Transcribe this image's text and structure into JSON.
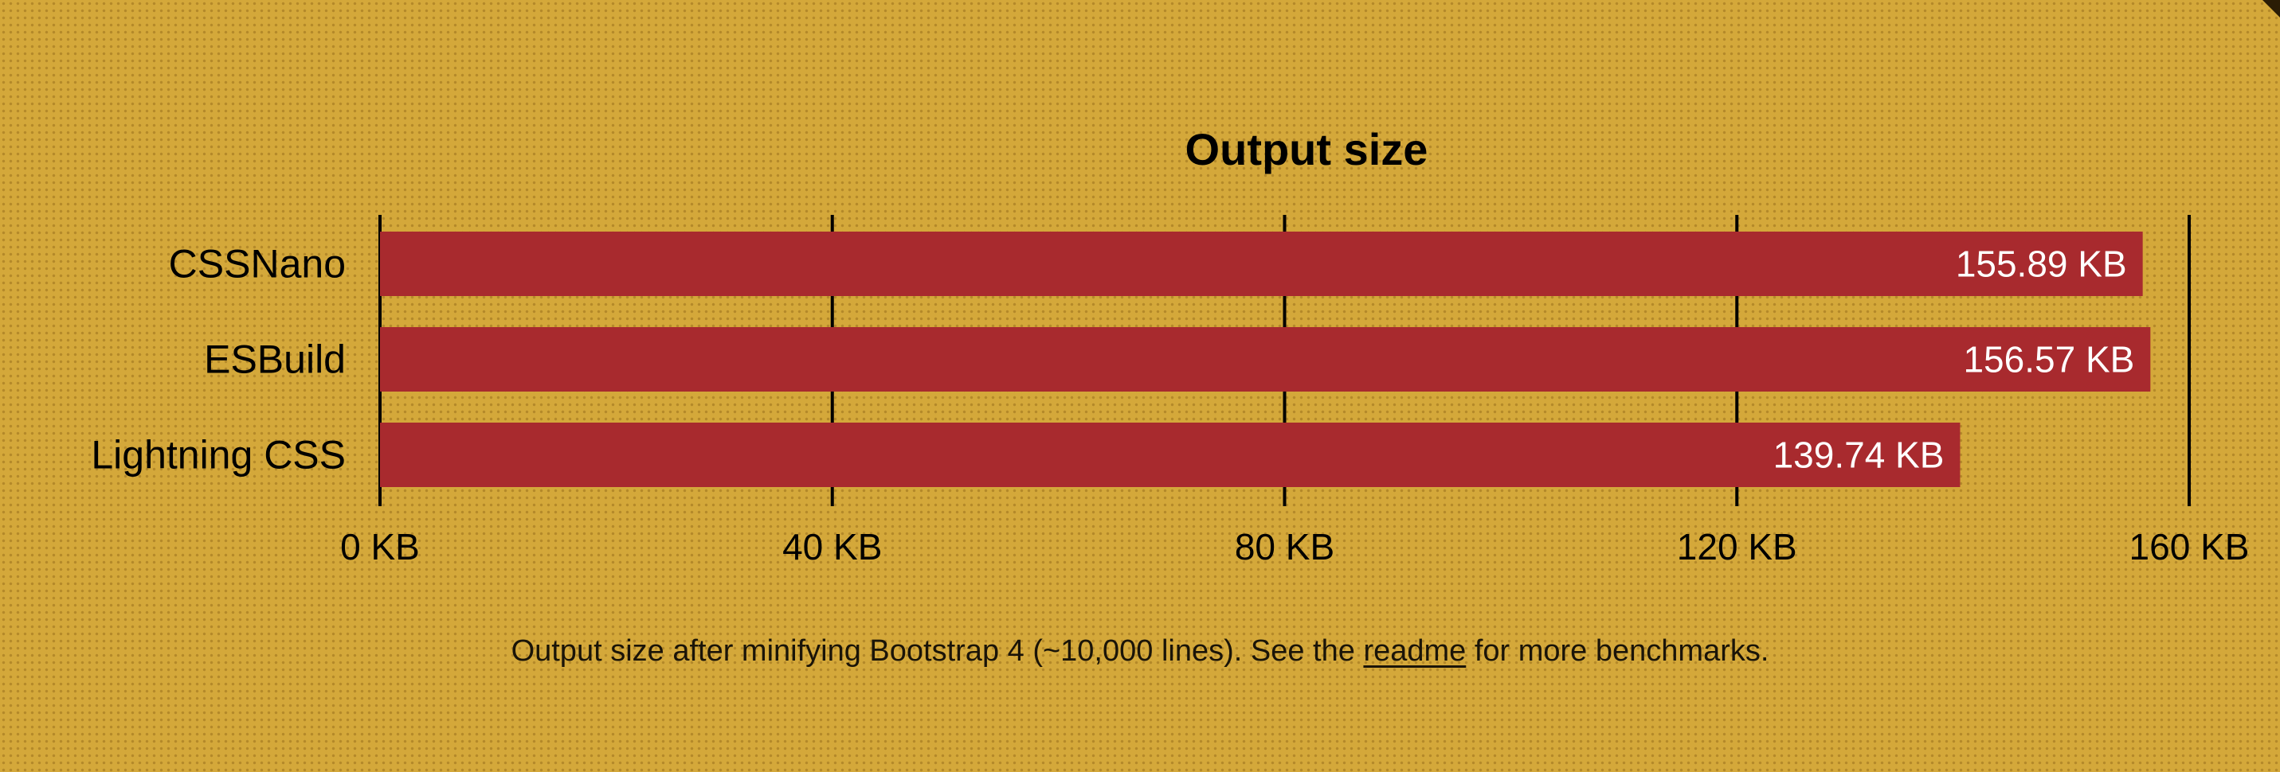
{
  "chart_data": {
    "type": "bar",
    "orientation": "horizontal",
    "title": "Output size",
    "xlabel": "",
    "ylabel": "",
    "categories": [
      "CSSNano",
      "ESBuild",
      "Lightning CSS"
    ],
    "values": [
      155.89,
      156.57,
      139.74
    ],
    "value_labels": [
      "155.89 KB",
      "156.57 KB",
      "139.74 KB"
    ],
    "unit": "KB",
    "xlim": [
      0,
      160
    ],
    "x_ticks": [
      0,
      40,
      80,
      120,
      160
    ],
    "x_tick_labels": [
      "0 KB",
      "40 KB",
      "80 KB",
      "120 KB",
      "160 KB"
    ],
    "grid": true,
    "legend": "none"
  },
  "caption": {
    "before": "Output size after minifying Bootstrap 4 (~10,000 lines). See the ",
    "link": "readme",
    "after": " for more benchmarks."
  },
  "colors": {
    "background": "#d4a83a",
    "bar": "#a82a2e",
    "bar_label": "#ffffff",
    "text": "#000000"
  }
}
